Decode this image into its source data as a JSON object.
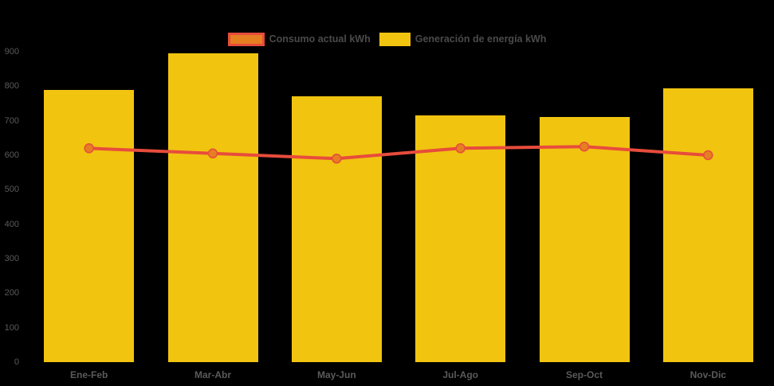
{
  "colors": {
    "background": "#000000",
    "bar_fill": "#f1c40f",
    "line_stroke": "#e74c3c",
    "marker_fill": "#e67e22",
    "axis_label_text": "#5a5a5a",
    "legend_text": "#4a4a4a"
  },
  "legend": {
    "items": [
      {
        "label": "Consumo actual kWh",
        "swatch_fill": "#e67e22",
        "swatch_border": "#e74c3c",
        "swatch_width": 46
      },
      {
        "label": "Generación de energía kWh",
        "swatch_fill": "#f1c40f",
        "swatch_border": "#f1c40f",
        "swatch_width": 39
      }
    ]
  },
  "chart_data": {
    "type": "bar",
    "categories": [
      "Ene-Feb",
      "Mar-Abr",
      "May-Jun",
      "Jul-Ago",
      "Sep-Oct",
      "Nov-Dic"
    ],
    "series": [
      {
        "name": "Consumo actual kWh",
        "type": "line",
        "color": "#e74c3c",
        "marker_color": "#e67e22",
        "values": [
          620,
          605,
          590,
          620,
          625,
          600
        ]
      },
      {
        "name": "Generación de energía kWh",
        "type": "bar",
        "color": "#f1c40f",
        "values": [
          790,
          895,
          770,
          715,
          710,
          795
        ]
      }
    ],
    "title": "",
    "xlabel": "",
    "ylabel": "",
    "ylim": [
      0,
      900
    ],
    "yticks": [
      0,
      100,
      200,
      300,
      400,
      500,
      600,
      700,
      800,
      900
    ],
    "grid": false,
    "legend_position": "top",
    "background": "#000000"
  }
}
